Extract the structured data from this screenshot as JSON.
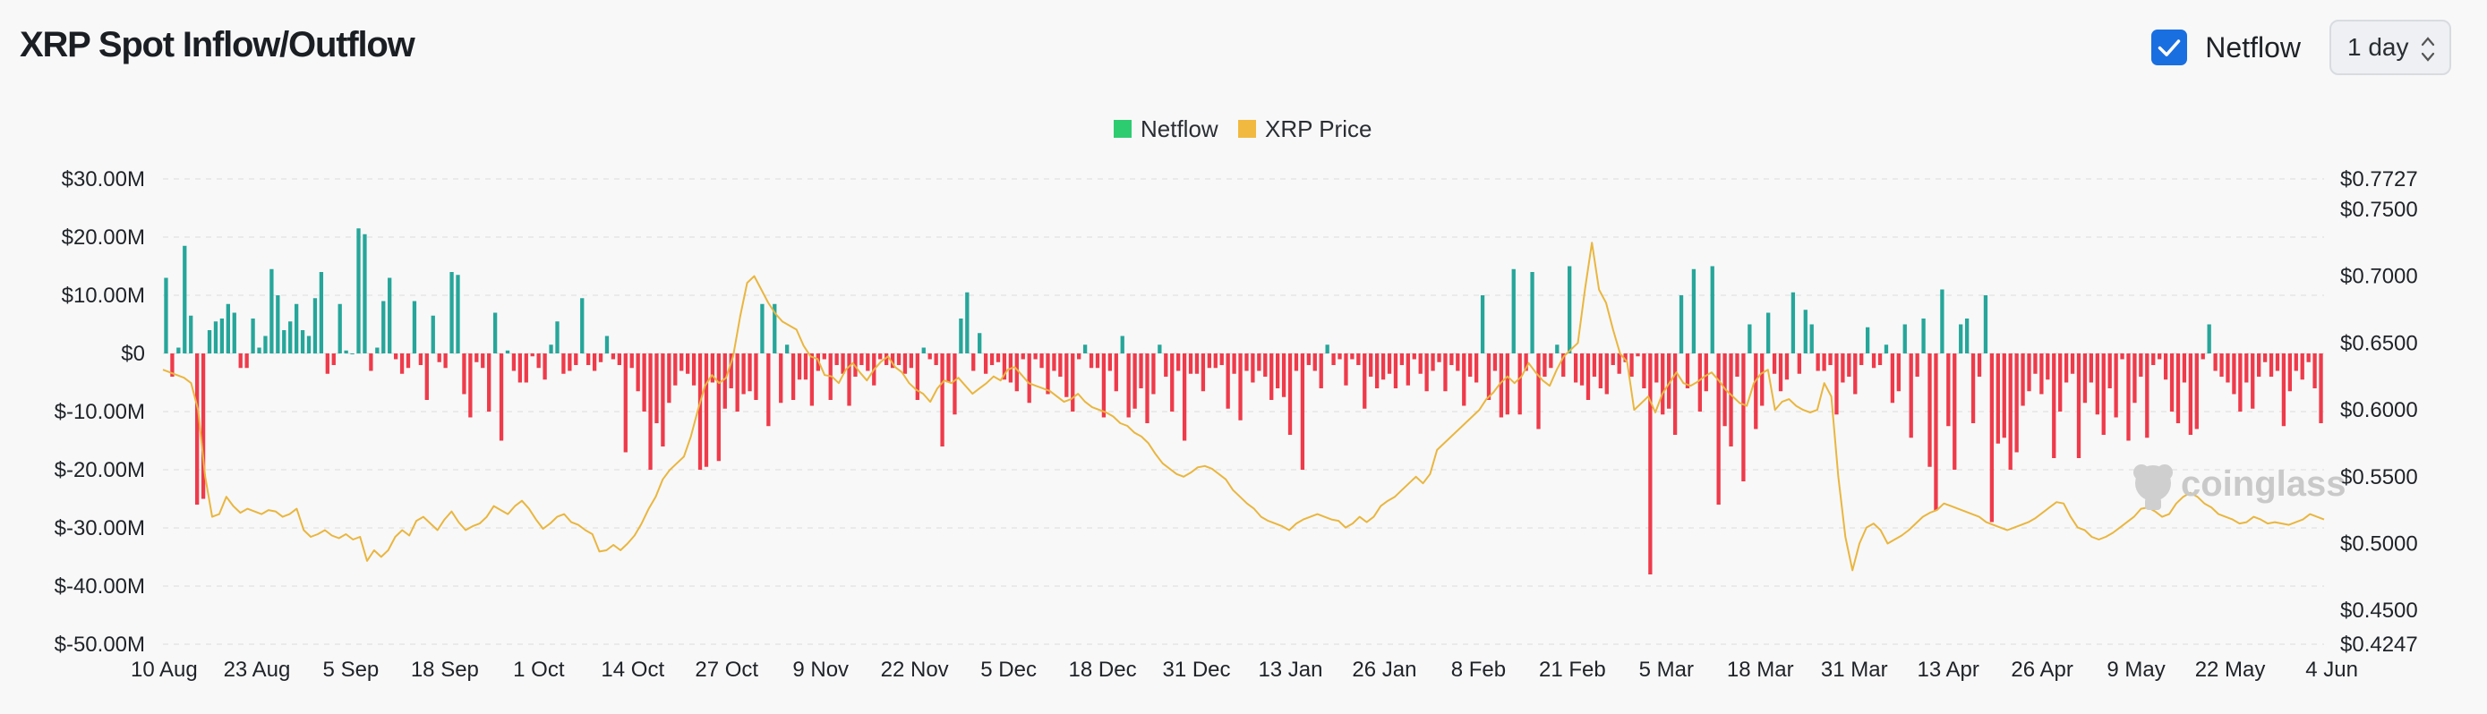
{
  "header": {
    "title": "XRP Spot Inflow/Outflow",
    "checkbox_label": "Netflow",
    "checkbox_checked": true,
    "interval_selected": "1 day"
  },
  "watermark": "coinglass",
  "colors": {
    "inflow": "#26a69a",
    "outflow": "#ef3a4a",
    "price": "#e9b63f",
    "legend_netflow": "#2ecc71",
    "legend_price": "#f1b940",
    "accent": "#1a6fe0"
  },
  "chart_data": {
    "type": "bar",
    "title": "XRP Spot Inflow/Outflow",
    "legend": [
      {
        "name": "Netflow",
        "color": "#2ecc71"
      },
      {
        "name": "XRP Price",
        "color": "#f1b940"
      }
    ],
    "legend_position": "top-center",
    "grid": true,
    "x_tick_labels": [
      "10 Aug",
      "23 Aug",
      "5 Sep",
      "18 Sep",
      "1 Oct",
      "14 Oct",
      "27 Oct",
      "9 Nov",
      "22 Nov",
      "5 Dec",
      "18 Dec",
      "31 Dec",
      "13 Jan",
      "26 Jan",
      "8 Feb",
      "21 Feb",
      "5 Mar",
      "18 Mar",
      "31 Mar",
      "13 Apr",
      "26 Apr",
      "9 May",
      "22 May",
      "4 Jun"
    ],
    "y_left_ticks": [
      "$30.00M",
      "$20.00M",
      "$10.00M",
      "$0",
      "$-10.00M",
      "$-20.00M",
      "$-30.00M",
      "$-40.00M",
      "$-50.00M"
    ],
    "y_left_range": [
      -50,
      30
    ],
    "y_right_ticks": [
      "$0.7727",
      "$0.7500",
      "$0.7000",
      "$0.6500",
      "$0.6000",
      "$0.5500",
      "$0.5000",
      "$0.4500",
      "$0.4247"
    ],
    "y_right_range": [
      0.4247,
      0.7727
    ],
    "series": [
      {
        "name": "Netflow",
        "unit": "$M",
        "values": [
          13,
          -4,
          1,
          18.5,
          6.5,
          -26,
          -25,
          4,
          5.5,
          6,
          8.5,
          7,
          -2.5,
          -2.5,
          6,
          1,
          3,
          14.5,
          10,
          4,
          5.5,
          8.5,
          4,
          3,
          9.5,
          14,
          -3.5,
          -2,
          8.5,
          0.5,
          0,
          21.5,
          20.5,
          -3,
          1,
          9,
          13,
          -1,
          -3.5,
          -2.5,
          9,
          -2,
          -8,
          6.5,
          -1.5,
          -2.5,
          14,
          13.5,
          -7,
          -11,
          -1.5,
          -2.5,
          -10,
          7,
          -15,
          0.5,
          -3,
          -5,
          -5,
          -0.5,
          -2.5,
          -4.5,
          1.5,
          5.5,
          -3.5,
          -3,
          -2,
          9.5,
          -2,
          -3,
          -1.5,
          3,
          -1,
          -2,
          -17,
          -2.5,
          -6.5,
          -10,
          -20,
          -12,
          -16,
          -8.5,
          -5.5,
          -3,
          -3.5,
          -5.5,
          -20,
          -19.5,
          -5,
          -18.5,
          -9.5,
          -6,
          -10,
          -7,
          -6.5,
          -8,
          8.5,
          -12.5,
          8.5,
          -8.5,
          1.5,
          -8,
          -4.5,
          -4.5,
          -9,
          -3,
          -1,
          -8,
          -2,
          -3.5,
          -9,
          -4,
          -2,
          -3,
          -5.5,
          -1,
          -2,
          -2.5,
          -2,
          -3.5,
          -2.5,
          -8,
          1,
          -1,
          -2,
          -16,
          -5,
          -10.5,
          6,
          10.5,
          -3,
          3.5,
          -3.5,
          -2,
          -1.5,
          -4.5,
          -5,
          -6.5,
          -1,
          -8.5,
          -1,
          -2.5,
          -7,
          -3,
          -4,
          -7.5,
          -10,
          -1,
          1.5,
          -2.5,
          -2.5,
          -11,
          -3,
          -6.5,
          3,
          -11,
          -9.5,
          -6,
          -12,
          -7,
          1.5,
          -4,
          -10,
          -3,
          -15,
          -3.5,
          -3.5,
          -6.5,
          -2.5,
          -2.5,
          -2,
          -9.5,
          -3.5,
          -11.5,
          -3,
          -5,
          -3,
          -4,
          -8,
          -6,
          -7.5,
          -14,
          -3,
          -20,
          -2,
          -3,
          -6,
          1.5,
          -2,
          -1,
          -5.5,
          -1,
          -2,
          -9.5,
          -4,
          -6,
          -4.5,
          -3.5,
          -6,
          -2,
          -5.5,
          -1,
          -3.5,
          -6.5,
          -3,
          -1.5,
          -6.5,
          -2,
          -3,
          -9,
          -4,
          -5,
          -1,
          -8,
          -3,
          -11,
          -10.5,
          -6,
          -10.5,
          -3,
          -5,
          -13,
          -4,
          -2.5,
          1.5,
          -4,
          -2.5,
          -5,
          -5.5,
          -8,
          -4,
          -6,
          -7,
          -2,
          -3.5,
          -1.5,
          -4,
          -0.5,
          -6,
          -38,
          -5,
          -10.5,
          -9.5,
          -14,
          -4.5,
          -6,
          -23,
          -10,
          -6.5,
          -4,
          -26,
          -12.5,
          -16,
          -4,
          -22,
          -8,
          -13,
          -9,
          -3,
          -3.5,
          -6.5,
          -4.5,
          -2,
          -3.5,
          -1.5,
          -6.5,
          -3,
          -3,
          -2,
          -10.5,
          -5,
          -4,
          -7,
          -2,
          4.5,
          -2.5,
          -2,
          1.5,
          -8.5,
          -6.5,
          -4,
          -14.5,
          -4,
          -10,
          -19.5,
          -27,
          -9.5,
          -12.5,
          -20,
          -17,
          -18,
          -12,
          -4,
          -22.5,
          -29,
          -15.5,
          -14.5,
          -20,
          -17,
          -9,
          -6.5,
          -3.5,
          -7,
          -4.5,
          -18,
          -10,
          -5,
          -3.5,
          -18,
          -8.5,
          -5,
          -10.5,
          -14,
          -6,
          -11,
          -1,
          -15,
          -8.5,
          -4,
          -14.5,
          -2,
          -1,
          -4.5,
          -10,
          -12,
          -5,
          -14,
          -13,
          -1,
          5,
          -3,
          -4,
          -5,
          -7,
          -10,
          -5,
          -9.5,
          -4,
          -1.5,
          -4,
          -3,
          -12.5,
          -6.5,
          -3,
          -4.5,
          -1.5,
          -6,
          -12
        ],
        "highlight_values": [
          {
            "index": 212,
            "value": 10
          },
          {
            "index": 217,
            "value": 14.5
          },
          {
            "index": 220,
            "value": 14
          },
          {
            "index": 226,
            "value": 15
          },
          {
            "index": 244,
            "value": 10
          },
          {
            "index": 246,
            "value": 14.5
          },
          {
            "index": 249,
            "value": 15
          },
          {
            "index": 255,
            "value": 5
          },
          {
            "index": 258,
            "value": 7
          },
          {
            "index": 262,
            "value": 10.5
          },
          {
            "index": 264,
            "value": 7.5
          },
          {
            "index": 265,
            "value": 5
          },
          {
            "index": 280,
            "value": 5
          },
          {
            "index": 283,
            "value": 6
          },
          {
            "index": 286,
            "value": 11
          },
          {
            "index": 289,
            "value": 5
          },
          {
            "index": 290,
            "value": 6
          },
          {
            "index": 293,
            "value": 10
          }
        ]
      },
      {
        "name": "XRP Price",
        "unit": "$",
        "x_start": "10 Aug",
        "x_end": "4 Jun",
        "values": [
          0.63,
          0.628,
          0.626,
          0.624,
          0.62,
          0.6,
          0.55,
          0.52,
          0.522,
          0.535,
          0.528,
          0.523,
          0.526,
          0.524,
          0.522,
          0.525,
          0.524,
          0.52,
          0.522,
          0.526,
          0.51,
          0.505,
          0.507,
          0.51,
          0.506,
          0.504,
          0.507,
          0.503,
          0.505,
          0.487,
          0.495,
          0.49,
          0.495,
          0.505,
          0.51,
          0.506,
          0.517,
          0.52,
          0.515,
          0.51,
          0.518,
          0.524,
          0.516,
          0.51,
          0.513,
          0.515,
          0.52,
          0.528,
          0.525,
          0.522,
          0.528,
          0.532,
          0.526,
          0.518,
          0.511,
          0.515,
          0.52,
          0.522,
          0.516,
          0.514,
          0.51,
          0.507,
          0.494,
          0.495,
          0.499,
          0.495,
          0.5,
          0.506,
          0.515,
          0.526,
          0.535,
          0.548,
          0.555,
          0.56,
          0.565,
          0.58,
          0.6,
          0.618,
          0.626,
          0.62,
          0.624,
          0.64,
          0.67,
          0.695,
          0.7,
          0.69,
          0.68,
          0.672,
          0.666,
          0.663,
          0.66,
          0.648,
          0.64,
          0.638,
          0.626,
          0.625,
          0.62,
          0.63,
          0.635,
          0.628,
          0.622,
          0.63,
          0.636,
          0.64,
          0.632,
          0.628,
          0.62,
          0.615,
          0.612,
          0.606,
          0.616,
          0.622,
          0.62,
          0.624,
          0.618,
          0.612,
          0.616,
          0.62,
          0.625,
          0.622,
          0.63,
          0.632,
          0.626,
          0.62,
          0.618,
          0.616,
          0.614,
          0.61,
          0.606,
          0.608,
          0.612,
          0.606,
          0.602,
          0.6,
          0.598,
          0.595,
          0.59,
          0.588,
          0.583,
          0.58,
          0.575,
          0.567,
          0.56,
          0.556,
          0.552,
          0.55,
          0.553,
          0.557,
          0.558,
          0.556,
          0.552,
          0.548,
          0.54,
          0.535,
          0.53,
          0.526,
          0.52,
          0.517,
          0.515,
          0.513,
          0.51,
          0.515,
          0.518,
          0.52,
          0.522,
          0.52,
          0.518,
          0.517,
          0.512,
          0.515,
          0.52,
          0.516,
          0.52,
          0.528,
          0.532,
          0.535,
          0.54,
          0.545,
          0.55,
          0.545,
          0.552,
          0.57,
          0.575,
          0.58,
          0.585,
          0.59,
          0.595,
          0.6,
          0.608,
          0.613,
          0.62,
          0.625,
          0.62,
          0.625,
          0.635,
          0.628,
          0.622,
          0.618,
          0.63,
          0.64,
          0.645,
          0.65,
          0.69,
          0.725,
          0.69,
          0.68,
          0.66,
          0.642,
          0.636,
          0.6,
          0.605,
          0.61,
          0.598,
          0.612,
          0.62,
          0.628,
          0.62,
          0.618,
          0.621,
          0.625,
          0.628,
          0.622,
          0.615,
          0.61,
          0.605,
          0.603,
          0.62,
          0.627,
          0.63,
          0.6,
          0.606,
          0.608,
          0.603,
          0.6,
          0.598,
          0.6,
          0.62,
          0.61,
          0.55,
          0.505,
          0.48,
          0.5,
          0.512,
          0.515,
          0.51,
          0.5,
          0.503,
          0.506,
          0.51,
          0.515,
          0.52,
          0.523,
          0.525,
          0.53,
          0.528,
          0.526,
          0.524,
          0.522,
          0.52,
          0.516,
          0.514,
          0.512,
          0.51,
          0.512,
          0.514,
          0.516,
          0.519,
          0.523,
          0.527,
          0.531,
          0.53,
          0.52,
          0.512,
          0.51,
          0.505,
          0.503,
          0.505,
          0.508,
          0.512,
          0.516,
          0.52,
          0.526,
          0.527,
          0.524,
          0.52,
          0.522,
          0.53,
          0.535,
          0.538,
          0.535,
          0.53,
          0.527,
          0.522,
          0.52,
          0.518,
          0.515,
          0.516,
          0.52,
          0.518,
          0.515,
          0.516,
          0.515,
          0.514,
          0.516,
          0.518,
          0.522,
          0.52,
          0.518
        ]
      }
    ]
  }
}
